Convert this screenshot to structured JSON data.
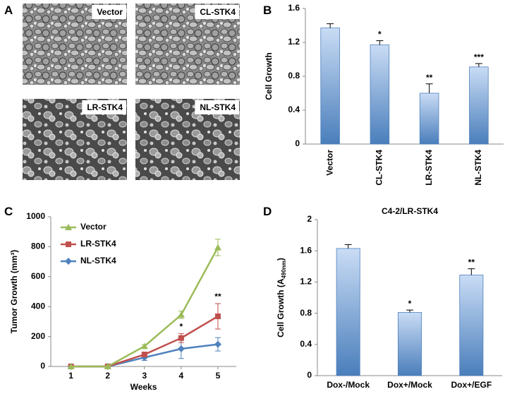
{
  "images": {
    "panel": "A",
    "labels": [
      "Vector",
      "CL-STK4",
      "LR-STK4",
      "NL-STK4"
    ]
  },
  "chart_data": [
    {
      "type": "bar",
      "panel": "B",
      "y_label": "Cell Growth",
      "categories": [
        "Vector",
        "CL-STK4",
        "LR-STK4",
        "NL-STK4"
      ],
      "values": [
        1.37,
        1.17,
        0.6,
        0.91
      ],
      "errors": [
        0.05,
        0.05,
        0.11,
        0.04
      ],
      "annotations": [
        null,
        "*",
        "**",
        "***"
      ],
      "color": "#4f81bd",
      "ylim": [
        0,
        1.6
      ],
      "yticks": [
        0,
        0.4,
        0.8,
        1.2,
        1.6
      ],
      "grid": false
    },
    {
      "type": "line",
      "panel": "C",
      "y_label": "Tumor Growth (mm³)",
      "x_label": "Weeks",
      "x": [
        1,
        2,
        3,
        4,
        5
      ],
      "series": [
        {
          "name": "Vector",
          "color": "#9bbb59",
          "marker": "triangle",
          "values": [
            0,
            0,
            135,
            345,
            795
          ],
          "errors": [
            0,
            0,
            10,
            25,
            55
          ]
        },
        {
          "name": "LR-STK4",
          "color": "#c0504d",
          "marker": "square",
          "values": [
            0,
            0,
            80,
            190,
            335
          ],
          "errors": [
            0,
            0,
            15,
            30,
            85
          ]
        },
        {
          "name": "NL-STK4",
          "color": "#4f81bd",
          "marker": "diamond",
          "values": [
            0,
            0,
            60,
            118,
            148
          ],
          "errors": [
            0,
            0,
            20,
            65,
            45
          ]
        }
      ],
      "annotations": [
        null,
        null,
        null,
        "*",
        "**"
      ],
      "xlim": [
        0.45,
        5.5
      ],
      "xticks": [
        1,
        2,
        3,
        4,
        5
      ],
      "ylim": [
        0,
        1000
      ],
      "yticks": [
        0,
        200,
        400,
        600,
        800,
        1000
      ],
      "grid": false,
      "legend": "upper left"
    },
    {
      "type": "bar",
      "panel": "D",
      "title": "C4-2/LR-STK4",
      "y_label": "Cell Growth (A",
      "y_label_subscript": "490nm",
      "y_label_end": ")",
      "categories": [
        "Dox-/Mock",
        "Dox+/Mock",
        "Dox+/EGF"
      ],
      "values": [
        1.63,
        0.81,
        1.29
      ],
      "errors": [
        0.05,
        0.03,
        0.08
      ],
      "annotations": [
        null,
        "*",
        "**"
      ],
      "color": "#4f81bd",
      "ylim": [
        0,
        2
      ],
      "yticks": [
        0,
        0.4,
        0.8,
        1.2,
        1.6,
        2
      ],
      "grid": false
    }
  ]
}
